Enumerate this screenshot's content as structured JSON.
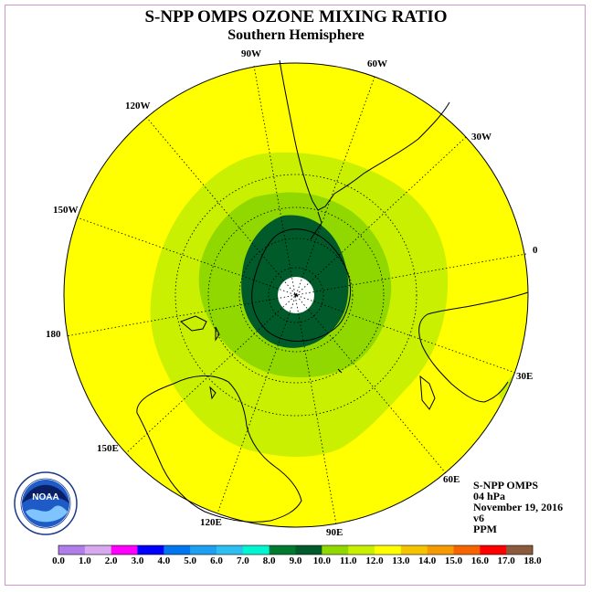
{
  "title": "S-NPP OMPS OZONE MIXING RATIO",
  "subtitle": "Southern Hemisphere",
  "info": {
    "instrument": "S-NPP OMPS",
    "level": "04 hPa",
    "date": "November 19, 2016",
    "version": "v6",
    "units": "PPM"
  },
  "logo": {
    "text": "NOAA",
    "ring_text": "NATIONAL OCEANIC AND ATMOSPHERIC ADMINISTRATION · U.S. DEPARTMENT OF COMMERCE"
  },
  "longitude_labels": [
    "90W",
    "60W",
    "30W",
    "0",
    "30E",
    "60E",
    "90E",
    "120E",
    "150E",
    "180",
    "150W",
    "120W"
  ],
  "colorbar": {
    "ticks": [
      "0.0",
      "1.0",
      "2.0",
      "3.0",
      "4.0",
      "5.0",
      "6.0",
      "7.0",
      "8.0",
      "9.0",
      "10.0",
      "11.0",
      "12.0",
      "13.0",
      "14.0",
      "15.0",
      "16.0",
      "17.0",
      "18.0"
    ],
    "colors": [
      "#b07ee8",
      "#d8a8f0",
      "#ff00ff",
      "#0000ff",
      "#0077ee",
      "#1ea0f0",
      "#2cc0f0",
      "#00f5d0",
      "#007a30",
      "#005a2a",
      "#90d800",
      "#c8f000",
      "#ffff00",
      "#f5c400",
      "#f59a00",
      "#f56400",
      "#ff0000",
      "#8b5a3c"
    ]
  },
  "map_colors": {
    "ocean_fill": "#ffff00",
    "band_11": "#c8f000",
    "band_10": "#90d800",
    "band_9": "#005a2a",
    "no_data": "#ffffff"
  }
}
